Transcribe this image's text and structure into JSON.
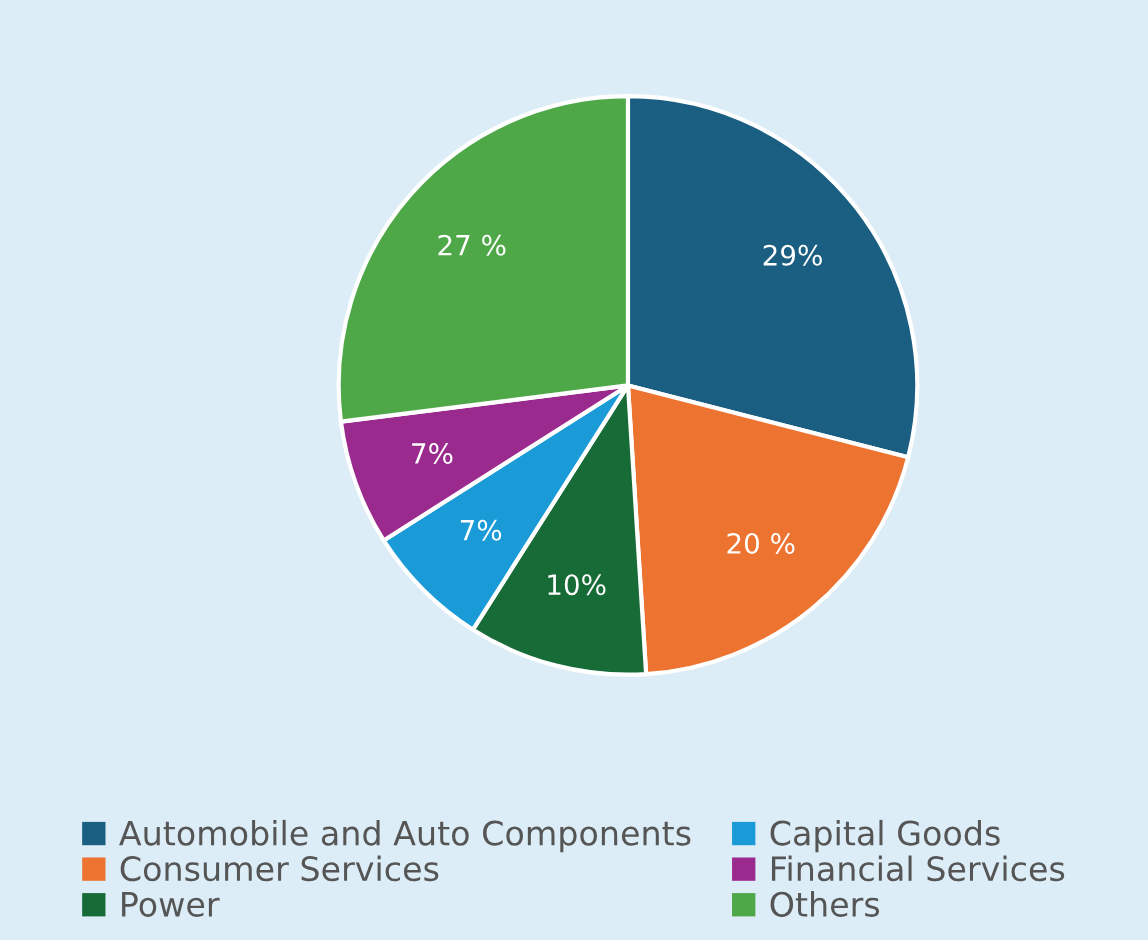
{
  "chart_data": {
    "type": "pie",
    "categories": [
      "Automobile and Auto Components",
      "Consumer Services",
      "Power",
      "Capital Goods",
      "Financial Services",
      "Others"
    ],
    "values": [
      29,
      20,
      10,
      7,
      7,
      27
    ],
    "value_labels": [
      "29%",
      "20 %",
      "10%",
      "7%",
      "7%",
      "27 %"
    ],
    "colors": [
      "#1a5e82",
      "#ed7330",
      "#176b37",
      "#1a9bd7",
      "#9b2a8f",
      "#4fa847"
    ],
    "legend": "bottom"
  }
}
